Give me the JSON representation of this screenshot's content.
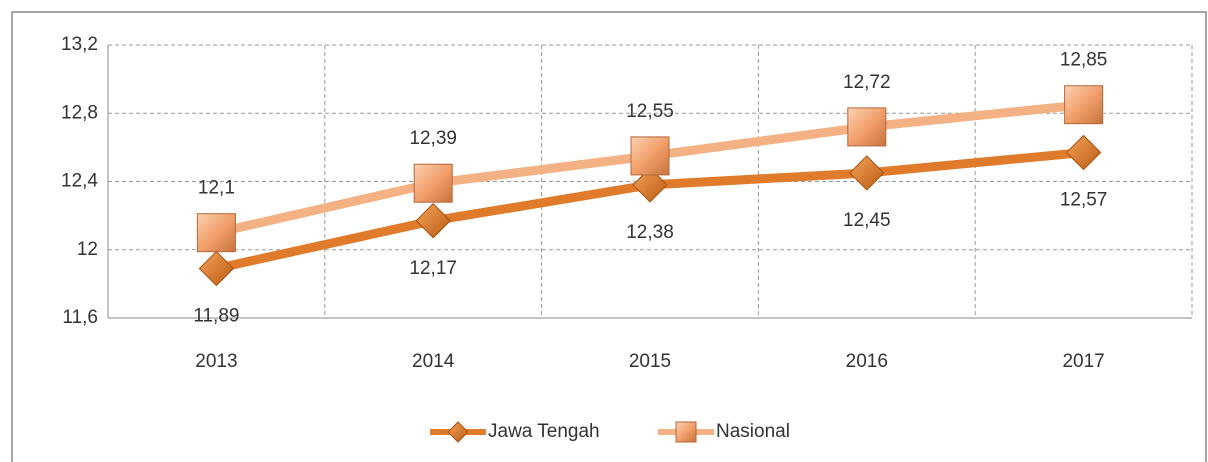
{
  "chart_data": {
    "type": "line",
    "categories": [
      "2013",
      "2014",
      "2015",
      "2016",
      "2017"
    ],
    "series": [
      {
        "name": "Jawa Tengah",
        "color": "#e07b2c",
        "values": [
          11.89,
          12.17,
          12.38,
          12.45,
          12.57
        ],
        "value_labels": [
          "11,89",
          "12,17",
          "12,38",
          "12,45",
          "12,57"
        ]
      },
      {
        "name": "Nasional",
        "color": "#f4b183",
        "values": [
          12.1,
          12.39,
          12.55,
          12.72,
          12.85
        ],
        "value_labels": [
          "12,1",
          "12,39",
          "12,55",
          "12,72",
          "12,85"
        ]
      }
    ],
    "ylim": [
      11.6,
      13.2
    ],
    "yticks": [
      {
        "value": 11.6,
        "label": "11,6"
      },
      12,
      {
        "value": 12.4,
        "label": "12,4"
      },
      {
        "value": 12.8,
        "label": "12,8"
      },
      {
        "value": 13.2,
        "label": "13,2"
      }
    ],
    "grid": true,
    "legend": "bottom"
  }
}
